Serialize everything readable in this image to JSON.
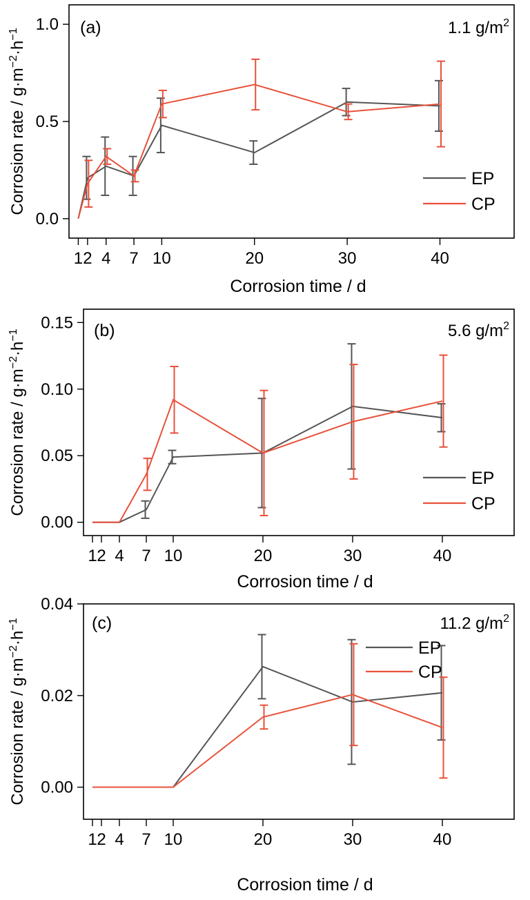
{
  "chart_data": [
    {
      "type": "line",
      "panel_label": "(a)",
      "annotation_base": "1.1 g/m",
      "annotation_sup": "2",
      "xlabel": "Corrosion time / d",
      "ylabel_main": "Corrosion rate / g·m",
      "ylabel_sup1": "−2",
      "ylabel_mid": "·h",
      "ylabel_sup2": "−1",
      "xlim": [
        0,
        48
      ],
      "ylim": [
        -0.1,
        1.1
      ],
      "xticks": [
        1,
        2,
        4,
        7,
        10,
        20,
        30,
        40
      ],
      "xtick_labels": [
        "1",
        "2",
        "4",
        "7",
        "10",
        "20",
        "30",
        "40"
      ],
      "yticks": [
        0.0,
        0.5,
        1.0
      ],
      "ytick_labels": [
        "0.0",
        "0.5",
        "1.0"
      ],
      "legend_position": "right",
      "series": [
        {
          "name": "EP",
          "color": "#555555",
          "x": [
            1,
            2,
            4,
            7,
            10,
            20,
            30,
            40
          ],
          "y": [
            0.0,
            0.21,
            0.27,
            0.22,
            0.48,
            0.34,
            0.6,
            0.58
          ],
          "err": [
            null,
            0.11,
            0.15,
            0.1,
            0.14,
            0.06,
            0.07,
            0.13
          ]
        },
        {
          "name": "CP",
          "color": "#e8503a",
          "x": [
            1,
            2,
            4,
            7,
            10,
            20,
            30,
            40
          ],
          "y": [
            0.0,
            0.18,
            0.32,
            0.22,
            0.59,
            0.69,
            0.55,
            0.59
          ],
          "err": [
            null,
            0.12,
            0.04,
            0.03,
            0.07,
            0.13,
            0.04,
            0.22
          ]
        }
      ]
    },
    {
      "type": "line",
      "panel_label": "(b)",
      "annotation_base": "5.6 g/m",
      "annotation_sup": "2",
      "xlabel": "Corrosion time / d",
      "ylabel_main": "Corrosion rate / g·m",
      "ylabel_sup1": "−2",
      "ylabel_mid": "·h",
      "ylabel_sup2": "−1",
      "xlim": [
        0,
        48
      ],
      "ylim": [
        -0.01,
        0.16
      ],
      "xticks": [
        1,
        2,
        4,
        7,
        10,
        20,
        30,
        40
      ],
      "xtick_labels": [
        "1",
        "2",
        "4",
        "7",
        "10",
        "20",
        "30",
        "40"
      ],
      "yticks": [
        0.0,
        0.05,
        0.1,
        0.15
      ],
      "ytick_labels": [
        "0.00",
        "0.05",
        "0.10",
        "0.15"
      ],
      "legend_position": "right",
      "series": [
        {
          "name": "EP",
          "color": "#555555",
          "x": [
            1,
            2,
            4,
            7,
            10,
            20,
            30,
            40
          ],
          "y": [
            0.0,
            0.0,
            0.0,
            0.0095,
            0.049,
            0.052,
            0.087,
            0.0785
          ],
          "err": [
            null,
            null,
            null,
            0.0065,
            0.005,
            0.041,
            0.047,
            0.0105
          ]
        },
        {
          "name": "CP",
          "color": "#e8503a",
          "x": [
            1,
            2,
            4,
            7,
            10,
            20,
            30,
            40
          ],
          "y": [
            0.0,
            0.0,
            0.0,
            0.036,
            0.092,
            0.052,
            0.0755,
            0.091
          ],
          "err": [
            null,
            null,
            null,
            0.012,
            0.025,
            0.047,
            0.043,
            0.0345
          ]
        }
      ]
    },
    {
      "type": "line",
      "panel_label": "(c)",
      "annotation_base": "11.2 g/m",
      "annotation_sup": "2",
      "xlabel": "Corrosion time / d",
      "ylabel_main": "Corrosion rate / g·m",
      "ylabel_sup1": "−2",
      "ylabel_mid": "·h",
      "ylabel_sup2": "−1",
      "xlim": [
        0,
        48
      ],
      "ylim": [
        -0.007,
        0.04
      ],
      "xticks": [
        1,
        2,
        4,
        7,
        10,
        20,
        30,
        40
      ],
      "xtick_labels": [
        "1",
        "2",
        "4",
        "7",
        "10",
        "20",
        "30",
        "40"
      ],
      "yticks": [
        0.0,
        0.02,
        0.04
      ],
      "ytick_labels": [
        "0.00",
        "0.02",
        "0.04"
      ],
      "legend_position": "bottom-right",
      "series": [
        {
          "name": "EP",
          "color": "#555555",
          "x": [
            1,
            2,
            4,
            7,
            10,
            20,
            30,
            40
          ],
          "y": [
            0.0,
            0.0,
            0.0,
            0.0,
            0.0,
            0.0263,
            0.0186,
            0.0206
          ],
          "err": [
            null,
            null,
            null,
            null,
            null,
            0.007,
            0.0136,
            0.0103
          ]
        },
        {
          "name": "CP",
          "color": "#e8503a",
          "x": [
            1,
            2,
            4,
            7,
            10,
            20,
            30,
            40
          ],
          "y": [
            0.0,
            0.0,
            0.0,
            0.0,
            0.0,
            0.0153,
            0.0202,
            0.013
          ],
          "err": [
            null,
            null,
            null,
            null,
            null,
            0.0026,
            0.0111,
            0.011
          ]
        }
      ]
    }
  ]
}
